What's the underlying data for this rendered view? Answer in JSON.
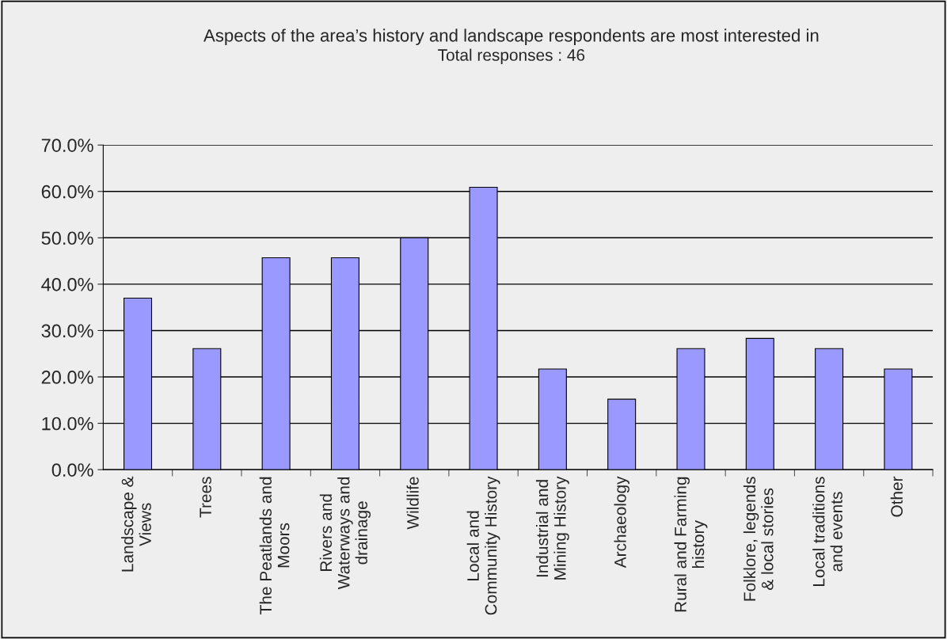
{
  "chart_data": {
    "type": "bar",
    "title": "Aspects of the area’s history and landscape respondents are most interested in",
    "subtitle": "Total responses : 46",
    "categories": [
      "Landscape &\nViews",
      "Trees",
      "The Peatlands and\nMoors",
      "Rivers and\nWaterways and\ndrainage",
      "Wildlife",
      "Local and\nCommunity History",
      "Industrial and\nMining History",
      "Archaeology",
      "Rural and Farming\nhistory",
      "Folklore, legends\n& local stories",
      "Local traditions\nand events",
      "Other"
    ],
    "values": [
      37.0,
      26.1,
      45.7,
      45.7,
      50.0,
      60.9,
      21.7,
      15.2,
      26.1,
      28.3,
      26.1,
      21.7
    ],
    "color": "#9999ff",
    "ylim": [
      0,
      70
    ],
    "yticks": [
      {
        "value": 0,
        "label": "0.0%"
      },
      {
        "value": 10,
        "label": "10.0%"
      },
      {
        "value": 20,
        "label": "20.0%"
      },
      {
        "value": 30,
        "label": "30.0%"
      },
      {
        "value": 40,
        "label": "40.0%"
      },
      {
        "value": 50,
        "label": "50.0%"
      },
      {
        "value": 60,
        "label": "60.0%"
      },
      {
        "value": 70,
        "label": "70.0%"
      }
    ],
    "grid": "y"
  }
}
